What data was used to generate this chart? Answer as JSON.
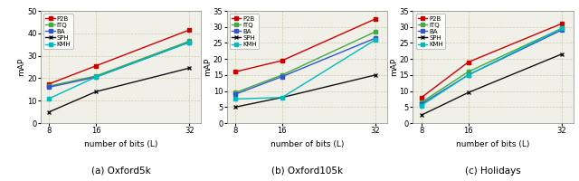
{
  "x": [
    8,
    16,
    32
  ],
  "subplots": [
    {
      "title": "(a) Oxford5k",
      "ylabel": "mAP",
      "xlabel": "number of bits (L)",
      "ylim": [
        0,
        50
      ],
      "yticks": [
        0,
        10,
        20,
        30,
        40,
        50
      ],
      "series": {
        "P2B": [
          17.5,
          25.5,
          41.5
        ],
        "ITQ": [
          16.5,
          21.0,
          36.5
        ],
        "BA": [
          16.0,
          20.5,
          36.0
        ],
        "SPH": [
          5.0,
          14.0,
          24.5
        ],
        "KMH": [
          11.0,
          20.5,
          36.0
        ]
      }
    },
    {
      "title": "(b) Oxford105k",
      "ylabel": "mAP",
      "xlabel": "number of bits (L)",
      "ylim": [
        0,
        35
      ],
      "yticks": [
        0,
        5,
        10,
        15,
        20,
        25,
        30,
        35
      ],
      "series": {
        "P2B": [
          16.0,
          19.5,
          32.5
        ],
        "ITQ": [
          9.5,
          15.0,
          28.5
        ],
        "BA": [
          9.0,
          14.5,
          26.5
        ],
        "SPH": [
          5.0,
          8.0,
          15.0
        ],
        "KMH": [
          7.5,
          8.0,
          26.0
        ]
      }
    },
    {
      "title": "(c) Holidays",
      "ylabel": "mAP",
      "xlabel": "number of bits (L)",
      "ylim": [
        0,
        35
      ],
      "yticks": [
        0,
        5,
        10,
        15,
        20,
        25,
        30,
        35
      ],
      "series": {
        "P2B": [
          8.0,
          19.0,
          31.0
        ],
        "ITQ": [
          6.5,
          16.0,
          29.5
        ],
        "BA": [
          6.0,
          15.0,
          29.0
        ],
        "SPH": [
          2.5,
          9.5,
          21.5
        ],
        "KMH": [
          5.5,
          15.0,
          29.5
        ]
      }
    }
  ],
  "series_styles": {
    "P2B": {
      "color": "#cc0000",
      "marker": "s",
      "linestyle": "-"
    },
    "ITQ": {
      "color": "#44aa44",
      "marker": "s",
      "linestyle": "-"
    },
    "BA": {
      "color": "#3355cc",
      "marker": "s",
      "linestyle": "-"
    },
    "SPH": {
      "color": "#111111",
      "marker": "x",
      "linestyle": "-"
    },
    "KMH": {
      "color": "#00bbbb",
      "marker": "s",
      "linestyle": "-"
    }
  },
  "legend_order": [
    "P2B",
    "ITQ",
    "BA",
    "SPH",
    "KMH"
  ],
  "background_color": "#f0f0e8",
  "grid_color": "#ccccaa"
}
